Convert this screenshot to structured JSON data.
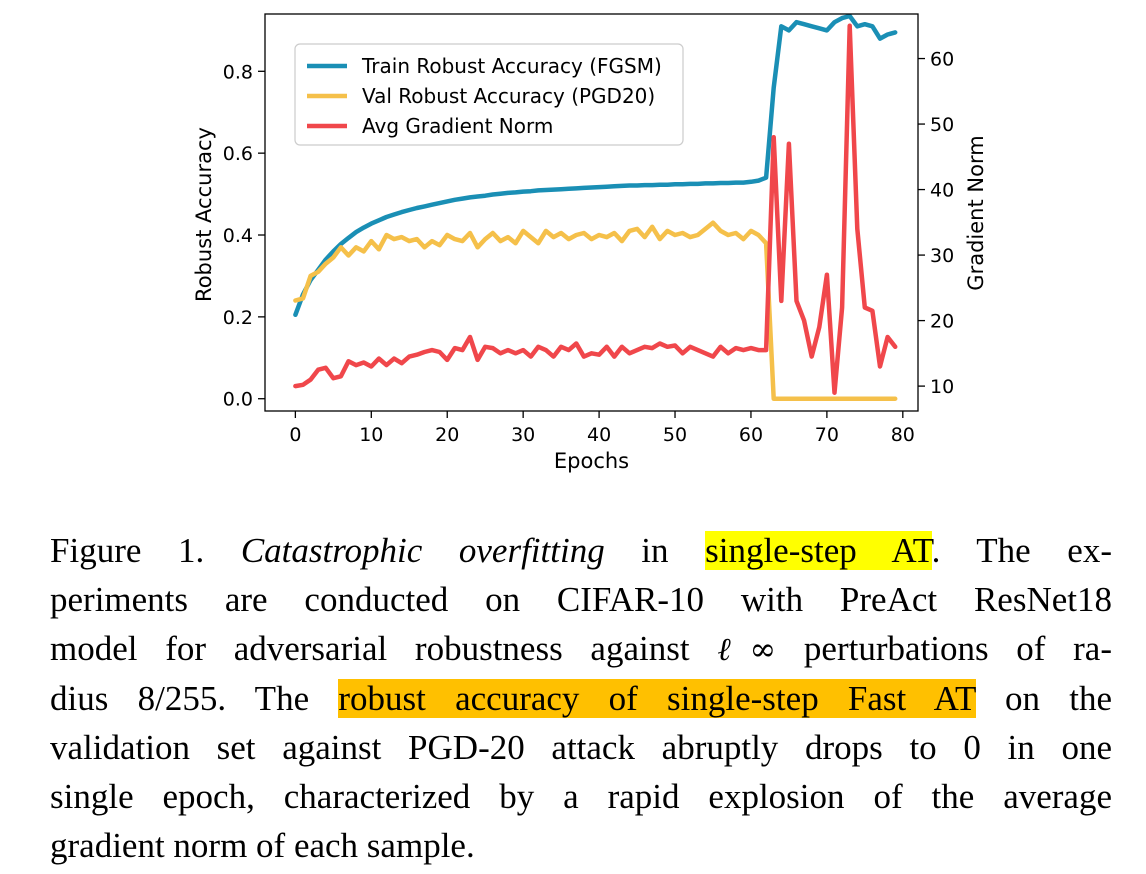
{
  "chart_data": {
    "type": "line",
    "xlabel": "Epochs",
    "ylabel_left": "Robust Accuracy",
    "ylabel_right": "Gradient Norm",
    "xlim": [
      -4,
      82
    ],
    "ylim_left": [
      -0.03,
      0.94
    ],
    "ylim_right": [
      6.2,
      66.8
    ],
    "x_ticks": [
      0,
      10,
      20,
      30,
      40,
      50,
      60,
      70,
      80
    ],
    "y_ticks_left": [
      0.0,
      0.2,
      0.4,
      0.6,
      0.8
    ],
    "y_ticks_right": [
      10,
      20,
      30,
      40,
      50,
      60
    ],
    "grid": false,
    "legend_position": "top-left",
    "series": [
      {
        "name": "Train Robust Accuracy (FGSM)",
        "axis": "left",
        "color": "#1a8fb5",
        "x": [
          0,
          1,
          2,
          3,
          4,
          5,
          6,
          7,
          8,
          9,
          10,
          11,
          12,
          13,
          14,
          15,
          16,
          17,
          18,
          19,
          20,
          21,
          22,
          23,
          24,
          25,
          26,
          27,
          28,
          29,
          30,
          31,
          32,
          33,
          34,
          35,
          36,
          37,
          38,
          39,
          40,
          41,
          42,
          43,
          44,
          45,
          46,
          47,
          48,
          49,
          50,
          51,
          52,
          53,
          54,
          55,
          56,
          57,
          58,
          59,
          60,
          61,
          62,
          63,
          64,
          65,
          66,
          67,
          68,
          69,
          70,
          71,
          72,
          73,
          74,
          75,
          76,
          77,
          78,
          79
        ],
        "values": [
          0.205,
          0.255,
          0.29,
          0.315,
          0.34,
          0.36,
          0.378,
          0.393,
          0.407,
          0.418,
          0.428,
          0.436,
          0.444,
          0.45,
          0.456,
          0.461,
          0.466,
          0.47,
          0.474,
          0.478,
          0.482,
          0.486,
          0.489,
          0.492,
          0.494,
          0.496,
          0.499,
          0.501,
          0.503,
          0.504,
          0.506,
          0.507,
          0.509,
          0.51,
          0.511,
          0.512,
          0.513,
          0.514,
          0.515,
          0.516,
          0.517,
          0.518,
          0.519,
          0.52,
          0.521,
          0.521,
          0.522,
          0.522,
          0.523,
          0.523,
          0.524,
          0.524,
          0.525,
          0.525,
          0.526,
          0.526,
          0.527,
          0.527,
          0.528,
          0.528,
          0.53,
          0.533,
          0.54,
          0.76,
          0.91,
          0.9,
          0.92,
          0.915,
          0.91,
          0.905,
          0.9,
          0.92,
          0.93,
          0.935,
          0.91,
          0.915,
          0.91,
          0.88,
          0.89,
          0.895
        ]
      },
      {
        "name": "Val Robust Accuracy (PGD20)",
        "axis": "left",
        "color": "#f5c04a",
        "x": [
          0,
          1,
          2,
          3,
          4,
          5,
          6,
          7,
          8,
          9,
          10,
          11,
          12,
          13,
          14,
          15,
          16,
          17,
          18,
          19,
          20,
          21,
          22,
          23,
          24,
          25,
          26,
          27,
          28,
          29,
          30,
          31,
          32,
          33,
          34,
          35,
          36,
          37,
          38,
          39,
          40,
          41,
          42,
          43,
          44,
          45,
          46,
          47,
          48,
          49,
          50,
          51,
          52,
          53,
          54,
          55,
          56,
          57,
          58,
          59,
          60,
          61,
          62,
          63,
          64,
          65,
          66,
          67,
          68,
          69,
          70,
          71,
          72,
          73,
          74,
          75,
          76,
          77,
          78,
          79
        ],
        "values": [
          0.24,
          0.245,
          0.3,
          0.31,
          0.33,
          0.345,
          0.37,
          0.35,
          0.37,
          0.36,
          0.385,
          0.365,
          0.4,
          0.39,
          0.395,
          0.385,
          0.39,
          0.37,
          0.385,
          0.375,
          0.4,
          0.39,
          0.385,
          0.405,
          0.37,
          0.39,
          0.405,
          0.385,
          0.395,
          0.38,
          0.41,
          0.395,
          0.38,
          0.41,
          0.395,
          0.405,
          0.39,
          0.4,
          0.405,
          0.39,
          0.4,
          0.395,
          0.405,
          0.385,
          0.41,
          0.415,
          0.395,
          0.42,
          0.39,
          0.41,
          0.4,
          0.405,
          0.395,
          0.4,
          0.415,
          0.43,
          0.41,
          0.4,
          0.405,
          0.39,
          0.41,
          0.4,
          0.38,
          0.0,
          0.0,
          0.0,
          0.0,
          0.0,
          0.0,
          0.0,
          0.0,
          0.0,
          0.0,
          0.0,
          0.0,
          0.0,
          0.0,
          0.0,
          0.0,
          0.0
        ]
      },
      {
        "name": "Avg Gradient Norm",
        "axis": "right",
        "color": "#f0474b",
        "x": [
          0,
          1,
          2,
          3,
          4,
          5,
          6,
          7,
          8,
          9,
          10,
          11,
          12,
          13,
          14,
          15,
          16,
          17,
          18,
          19,
          20,
          21,
          22,
          23,
          24,
          25,
          26,
          27,
          28,
          29,
          30,
          31,
          32,
          33,
          34,
          35,
          36,
          37,
          38,
          39,
          40,
          41,
          42,
          43,
          44,
          45,
          46,
          47,
          48,
          49,
          50,
          51,
          52,
          53,
          54,
          55,
          56,
          57,
          58,
          59,
          60,
          61,
          62,
          63,
          64,
          65,
          66,
          67,
          68,
          69,
          70,
          71,
          72,
          73,
          74,
          75,
          76,
          77,
          78,
          79
        ],
        "values": [
          10,
          10.2,
          11,
          12.5,
          12.8,
          11.2,
          11.5,
          13.8,
          13.2,
          13.6,
          13,
          14.2,
          13.2,
          14.2,
          13.5,
          14.5,
          14.8,
          15.2,
          15.5,
          15.2,
          14,
          15.8,
          15.5,
          17.5,
          14,
          16,
          15.8,
          15,
          15.5,
          15,
          15.5,
          14.5,
          16,
          15.5,
          14.5,
          16,
          15.5,
          16.5,
          14.5,
          15,
          14.8,
          16,
          14.5,
          16,
          15,
          15.5,
          16,
          15.8,
          16.5,
          16,
          16.2,
          15,
          16,
          15.5,
          15,
          14.5,
          16,
          15,
          15.8,
          15.5,
          15.8,
          15.5,
          15.5,
          48,
          23,
          47,
          23,
          20,
          14.5,
          19,
          27,
          9,
          22,
          65,
          34,
          22,
          21.5,
          13,
          17.5,
          16
        ]
      }
    ]
  },
  "caption": {
    "line1_a": "Figure 1.  ",
    "line1_italic": "Catastrophic overfitting",
    "line1_b": " in ",
    "line1_hl": "single-step AT",
    "line1_c": ". The ex-",
    "line2": "periments are conducted on CIFAR-10 with PreAct ResNet18",
    "line3_a": "model for adversarial robustness against ",
    "line3_math": "ℓ∞",
    "line3_b": " perturbations of ra-",
    "line4_a": "dius ",
    "line4_math": "8/255",
    "line4_b": ".  The ",
    "line4_hl": "robust accuracy of single-step Fast AT",
    "line4_c": " on the",
    "line5": "validation set against PGD-20 attack abruptly drops to 0 in one",
    "line6": "single epoch, characterized by a rapid explosion of the average",
    "line7": "gradient norm of each sample."
  }
}
